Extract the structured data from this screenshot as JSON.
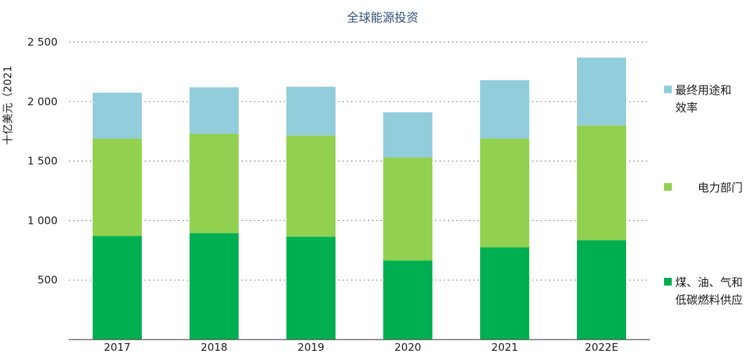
{
  "chart_data": {
    "type": "bar",
    "stacked": true,
    "title": "全球能源投资",
    "ylabel": "十亿美元（2021",
    "xlabel": "",
    "categories": [
      "2017",
      "2018",
      "2019",
      "2020",
      "2021",
      "2022E"
    ],
    "ylim": [
      0,
      2500
    ],
    "yticks": [
      500,
      1000,
      1500,
      2000,
      2500
    ],
    "ytick_labels": [
      "500",
      "1 000",
      "1 500",
      "2 000",
      "2 500"
    ],
    "grid": true,
    "legend_position": "right",
    "series": [
      {
        "name": "煤、油、气和低碳燃料供应",
        "name_lines": [
          "煤、油、气和",
          "低碳燃料供应"
        ],
        "color": "#00b050",
        "values": [
          870,
          895,
          865,
          665,
          775,
          835
        ]
      },
      {
        "name": "电力部门",
        "name_lines": [
          "电力部门"
        ],
        "color": "#92d050",
        "values": [
          820,
          835,
          850,
          865,
          915,
          965
        ]
      },
      {
        "name": "最终用途和效率",
        "name_lines": [
          "最终用途和",
          "效率"
        ],
        "color": "#92cddc",
        "values": [
          385,
          390,
          410,
          380,
          490,
          570
        ]
      }
    ]
  }
}
